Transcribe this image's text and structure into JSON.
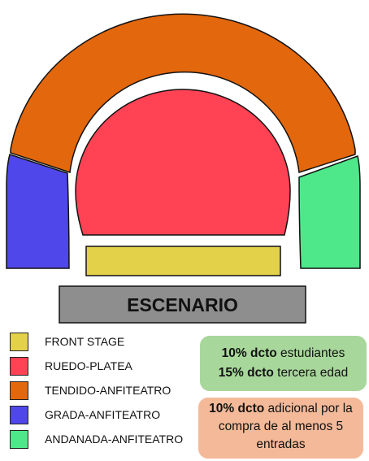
{
  "stage": {
    "label": "ESCENARIO"
  },
  "colors": {
    "front_stage": "#E4D14A",
    "ruedo_platea": "#FF4254",
    "tendido": "#E3670C",
    "grada": "#5047EA",
    "andanada": "#4EE88A",
    "stage": "#8E8E8E",
    "promo_green": "#A8D79B",
    "promo_orange": "#F4B998"
  },
  "legend": [
    {
      "label": "FRONT STAGE",
      "color": "#E4D14A"
    },
    {
      "label": "RUEDO-PLATEA",
      "color": "#FF4254"
    },
    {
      "label": "TENDIDO-ANFITEATRO",
      "color": "#E3670C"
    },
    {
      "label": "GRADA-ANFITEATRO",
      "color": "#5047EA"
    },
    {
      "label": "ANDANADA-ANFITEATRO",
      "color": "#4EE88A"
    }
  ],
  "promos": {
    "discounts": [
      {
        "bold": "10% dcto",
        "text": " estudiantes"
      },
      {
        "bold": "15% dcto",
        "text": " tercera edad"
      }
    ],
    "extra": {
      "bold": "10% dcto",
      "text": " adicional por la compra de al menos 5 entradas"
    }
  }
}
